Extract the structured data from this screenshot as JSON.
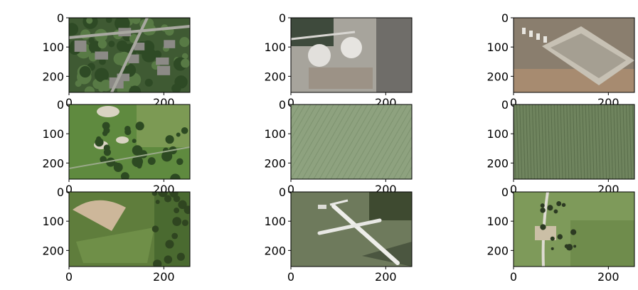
{
  "chart_data": {
    "type": "image-grid",
    "rows": 3,
    "cols": 3,
    "xticks": [
      0,
      200
    ],
    "yticks": [
      0,
      100,
      200
    ],
    "xlim": [
      0,
      255
    ],
    "ylim": [
      255,
      0
    ],
    "panels": [
      {
        "tile": "residential"
      },
      {
        "tile": "storage-tanks"
      },
      {
        "tile": "runway"
      },
      {
        "tile": "golf-course"
      },
      {
        "tile": "field-a"
      },
      {
        "tile": "field-b"
      },
      {
        "tile": "baseball-diamond"
      },
      {
        "tile": "airplane"
      },
      {
        "tile": "farm-road"
      }
    ],
    "colors": {
      "axis": "#000000",
      "grass": "#5f8a3f",
      "field": "#8ea27f",
      "dark_field": "#6f845e",
      "runway": "#8a7e6e",
      "sand": "#cdb79a",
      "concrete": "#a7a49c"
    }
  }
}
